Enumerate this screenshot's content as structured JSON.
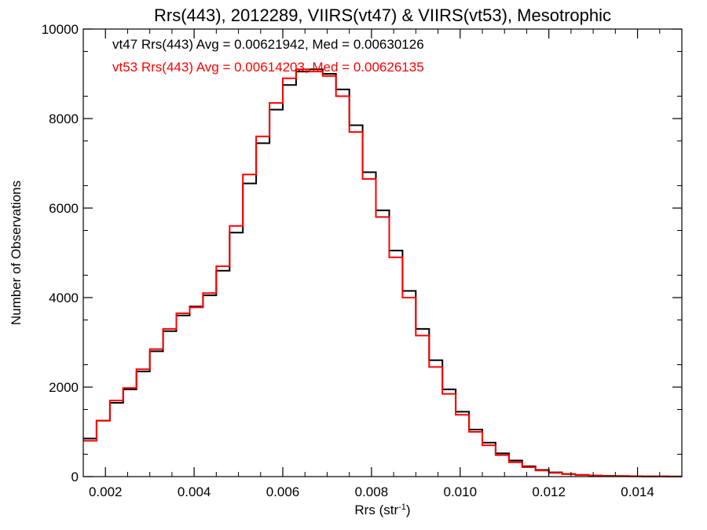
{
  "chart_data": {
    "type": "line",
    "title": "Rrs(443), 2012289, VIIRS(vt47) & VIIRS(vt53), Mesotrophic",
    "xlabel": "Rrs (str",
    "xlabel_superscript": "-1",
    "xlabel_close": ")",
    "ylabel": "Number of Observations",
    "xlim": [
      0.0015,
      0.015
    ],
    "ylim": [
      0,
      10000
    ],
    "x_ticks": [
      0.002,
      0.004,
      0.006,
      0.008,
      0.01,
      0.012,
      0.014
    ],
    "x_tick_labels": [
      "0.002",
      "0.004",
      "0.006",
      "0.008",
      "0.010",
      "0.012",
      "0.014"
    ],
    "y_ticks": [
      0,
      2000,
      4000,
      6000,
      8000,
      10000
    ],
    "y_tick_labels": [
      "0",
      "2000",
      "4000",
      "6000",
      "8000",
      "10000"
    ],
    "grid": false,
    "step": true,
    "annotations": [
      {
        "text": "vt47 Rrs(443) Avg = 0.00621942, Med = 0.00630126",
        "color": "#000000"
      },
      {
        "text": "vt53 Rrs(443) Avg = 0.00614203, Med = 0.00626135",
        "color": "#ff0000"
      }
    ],
    "x": [
      0.0015,
      0.0018,
      0.0021,
      0.0024,
      0.0027,
      0.003,
      0.0033,
      0.0036,
      0.0039,
      0.0042,
      0.0045,
      0.0048,
      0.0051,
      0.0054,
      0.0057,
      0.006,
      0.0063,
      0.0066,
      0.0069,
      0.0072,
      0.0075,
      0.0078,
      0.0081,
      0.0084,
      0.0087,
      0.009,
      0.0093,
      0.0096,
      0.0099,
      0.0102,
      0.0105,
      0.0108,
      0.0111,
      0.0114,
      0.0117,
      0.012,
      0.0123,
      0.0126,
      0.0129,
      0.0132,
      0.0135,
      0.0138,
      0.0141,
      0.0144,
      0.0147,
      0.015
    ],
    "series": [
      {
        "name": "vt47",
        "color": "#000000",
        "values": [
          850,
          1250,
          1650,
          1950,
          2350,
          2800,
          3250,
          3600,
          3800,
          4050,
          4600,
          5450,
          6550,
          7450,
          8200,
          8750,
          9050,
          9100,
          9000,
          8650,
          7850,
          6800,
          5950,
          5050,
          4150,
          3300,
          2600,
          1950,
          1450,
          1050,
          760,
          520,
          360,
          230,
          150,
          95,
          60,
          40,
          25,
          18,
          12,
          8,
          5,
          3,
          2,
          1
        ]
      },
      {
        "name": "vt53",
        "color": "#ff0000",
        "values": [
          800,
          1250,
          1700,
          1980,
          2400,
          2850,
          3300,
          3650,
          3780,
          4100,
          4700,
          5600,
          6750,
          7600,
          8350,
          8900,
          9100,
          9050,
          8950,
          8500,
          7700,
          6650,
          5800,
          4900,
          4000,
          3150,
          2450,
          1850,
          1380,
          1000,
          700,
          480,
          320,
          210,
          135,
          85,
          55,
          35,
          22,
          15,
          10,
          7,
          4,
          3,
          2,
          1
        ]
      }
    ]
  }
}
